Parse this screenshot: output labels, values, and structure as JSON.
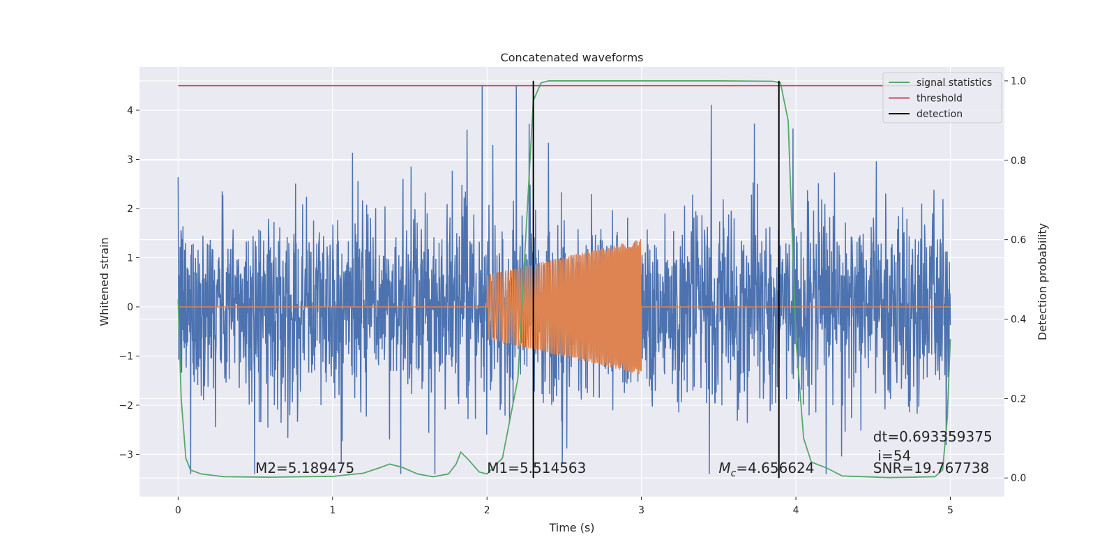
{
  "chart_data": {
    "type": "line",
    "title": "Concatenated waveforms",
    "xlabel": "Time (s)",
    "ylabel": "Whitened strain",
    "y2label": "Detection probability",
    "xlim": [
      -0.25,
      5.35
    ],
    "ylim": [
      -3.86,
      4.88
    ],
    "y2lim": [
      -0.047,
      1.035
    ],
    "xticks": [
      {
        "value": 0,
        "label": "0"
      },
      {
        "value": 1,
        "label": "1"
      },
      {
        "value": 2,
        "label": "2"
      },
      {
        "value": 3,
        "label": "3"
      },
      {
        "value": 4,
        "label": "4"
      },
      {
        "value": 5,
        "label": "5"
      }
    ],
    "yticks": [
      {
        "value": -3,
        "label": "−3"
      },
      {
        "value": -2,
        "label": "−2"
      },
      {
        "value": -1,
        "label": "−1"
      },
      {
        "value": 0,
        "label": "0"
      },
      {
        "value": 1,
        "label": "1"
      },
      {
        "value": 2,
        "label": "2"
      },
      {
        "value": 3,
        "label": "3"
      },
      {
        "value": 4,
        "label": "4"
      }
    ],
    "y2ticks": [
      {
        "value": 0.0,
        "label": "0.0"
      },
      {
        "value": 0.2,
        "label": "0.2"
      },
      {
        "value": 0.4,
        "label": "0.4"
      },
      {
        "value": 0.6,
        "label": "0.6"
      },
      {
        "value": 0.8,
        "label": "0.8"
      },
      {
        "value": 1.0,
        "label": "1.0"
      }
    ],
    "series": [
      {
        "name": "strain",
        "axis": "left",
        "color": "#4c72b0",
        "kind": "noise",
        "x_range": [
          0,
          5
        ],
        "amplitude_envelope": 1.3,
        "peak_min": -3.4,
        "peak_max": 4.5
      },
      {
        "name": "waveform",
        "axis": "left",
        "color": "#dd8452",
        "kind": "chirp",
        "x_range": [
          0,
          5
        ],
        "active_range": [
          2.0,
          3.0
        ],
        "amplitude_start": 0.65,
        "amplitude_end": 1.38
      },
      {
        "name": "signal statistics",
        "axis": "right",
        "color": "#55a868",
        "x": [
          0,
          0.02,
          0.05,
          0.08,
          0.15,
          0.3,
          0.6,
          1.0,
          1.2,
          1.3,
          1.37,
          1.45,
          1.55,
          1.65,
          1.75,
          1.8,
          1.83,
          1.87,
          1.95,
          2.0,
          2.1,
          2.2,
          2.25,
          2.3,
          2.35,
          2.4,
          2.6,
          3.0,
          3.5,
          3.85,
          3.9,
          3.95,
          4.0,
          4.05,
          4.1,
          4.2,
          4.3,
          4.6,
          4.9,
          4.95,
          4.98,
          5.0
        ],
        "y": [
          0.45,
          0.2,
          0.05,
          0.02,
          0.01,
          0.003,
          0.002,
          0.004,
          0.012,
          0.025,
          0.035,
          0.027,
          0.01,
          0.003,
          0.01,
          0.035,
          0.065,
          0.05,
          0.015,
          0.01,
          0.05,
          0.25,
          0.6,
          0.95,
          0.995,
          1.0,
          1.0,
          1.0,
          1.0,
          0.999,
          0.995,
          0.9,
          0.35,
          0.1,
          0.04,
          0.025,
          0.005,
          0.001,
          0.003,
          0.02,
          0.15,
          0.35
        ]
      },
      {
        "name": "threshold",
        "axis": "right",
        "color": "#c44e52",
        "x": [
          0,
          5
        ],
        "y": [
          0.988,
          0.988
        ]
      },
      {
        "name": "detection",
        "axis": "right",
        "color": "#000000",
        "kind": "vlines",
        "x": [
          2.3,
          3.89
        ],
        "y_range": [
          0.0,
          1.0
        ]
      }
    ],
    "legend": {
      "position": "top-right",
      "entries": [
        {
          "label": "signal statistics",
          "color": "#55a868"
        },
        {
          "label": "threshold",
          "color": "#c44e52"
        },
        {
          "label": "detection",
          "color": "#000000"
        }
      ]
    },
    "annotations": [
      {
        "text": "M2=5.189475",
        "x": 0.5,
        "y": -3.38
      },
      {
        "text": "M1=5.514563",
        "x": 2.0,
        "y": -3.38
      },
      {
        "text": "=4.656624",
        "prefix_main": "M",
        "prefix_sub": "c",
        "x": 3.5,
        "y": -3.38
      },
      {
        "text": "dt=0.693359375",
        "x": 4.5,
        "y": -2.74
      },
      {
        "text": "i=54",
        "x": 4.53,
        "y": -3.13
      },
      {
        "text": "SNR=19.767738",
        "x": 4.5,
        "y": -3.38
      }
    ],
    "grid": true,
    "background": "#eaeaf2"
  }
}
